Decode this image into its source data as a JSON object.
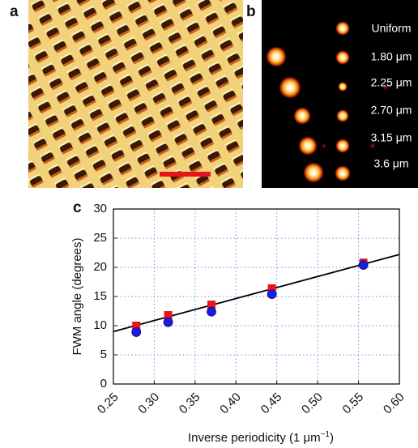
{
  "panel_labels": [
    "a",
    "b",
    "c"
  ],
  "panel_b": {
    "labels": [
      "Uniform",
      "1.80 μm",
      "2.25 μm",
      "2.70 μm",
      "3.15 μm",
      "3.6 μm"
    ]
  },
  "chart_data": {
    "type": "scatter",
    "y_label": "FWM angle (degrees)",
    "x_label": "Inverse periodicity (1 μm",
    "x_label_sup": "−1",
    "x_label_end": ")",
    "x": [
      0.278,
      0.317,
      0.37,
      0.444,
      0.556
    ],
    "series": [
      {
        "color": "#e8141c",
        "marker": "square",
        "values": [
          10.0,
          11.8,
          13.6,
          16.4,
          20.8
        ]
      },
      {
        "color": "#1c1ce0",
        "marker": "circle",
        "values": [
          8.9,
          10.6,
          12.4,
          15.4,
          20.4
        ]
      }
    ],
    "fit": {
      "x": [
        0.25,
        0.6
      ],
      "values": [
        9.0,
        22.2
      ],
      "color": "#000000"
    },
    "xlim": [
      0.25,
      0.6
    ],
    "xticks": [
      0.25,
      {
        "value": 0.3,
        "label": "0.30"
      },
      0.35,
      {
        "value": 0.4,
        "label": "0.40"
      },
      0.45,
      {
        "value": 0.5,
        "label": "0.50"
      },
      0.55,
      {
        "value": 0.6,
        "label": "0.60"
      }
    ],
    "ylim": [
      0,
      30
    ],
    "yticks": [
      0,
      5,
      10,
      15,
      20,
      25,
      30
    ],
    "grid": true
  }
}
